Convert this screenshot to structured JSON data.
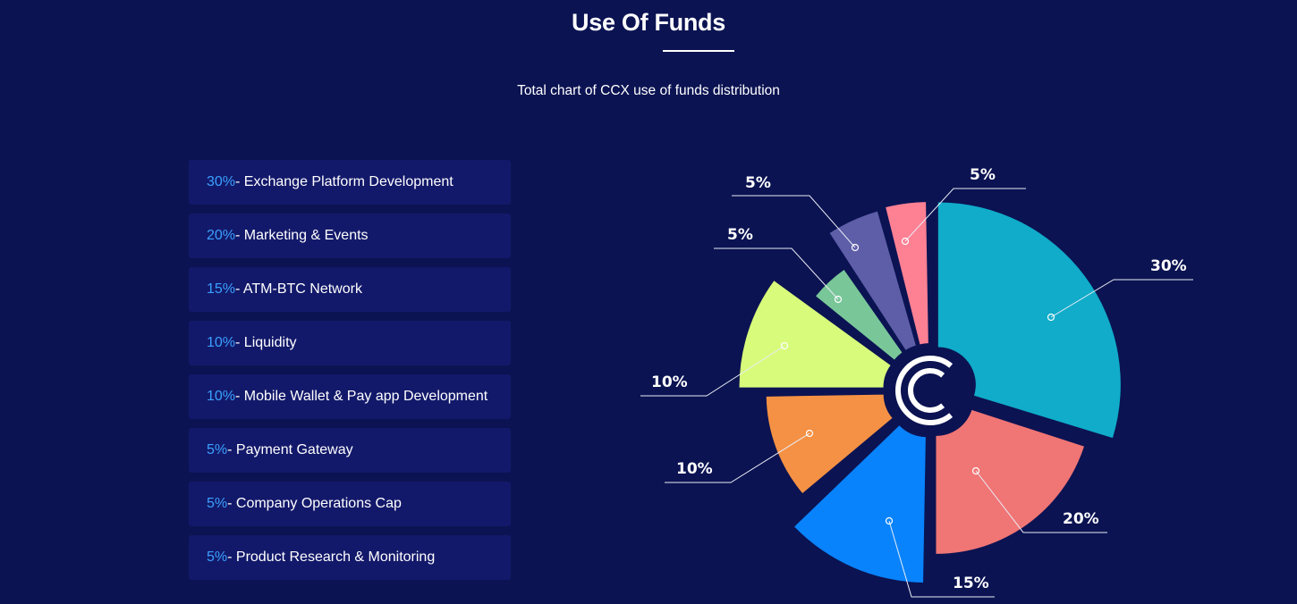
{
  "header": {
    "title": "Use Of Funds",
    "subtitle": "Total chart of CCX use of funds distribution"
  },
  "legend": [
    {
      "pct": "30%",
      "label": " - Exchange Platform Development"
    },
    {
      "pct": "20%",
      "label": " - Marketing & Events"
    },
    {
      "pct": "15%",
      "label": " - ATM-BTC Network"
    },
    {
      "pct": "10%",
      "label": " - Liquidity"
    },
    {
      "pct": "10%",
      "label": " - Mobile Wallet & Pay app Development"
    },
    {
      "pct": "5%",
      "label": " - Payment Gateway"
    },
    {
      "pct": "5%",
      "label": " - Company Operations Cap"
    },
    {
      "pct": "5%",
      "label": " - Product Research & Monitoring"
    }
  ],
  "chart_data": {
    "type": "pie",
    "style": "exploded rose (polar area) chart with center logo",
    "values": [
      30,
      20,
      15,
      10,
      10,
      5,
      5,
      5
    ],
    "labels": [
      "30%",
      "20%",
      "15%",
      "10%",
      "10%",
      "5%",
      "5%",
      "5%"
    ],
    "colors": [
      "#10acca",
      "#f07575",
      "#0883fc",
      "#f59144",
      "#d8fb7b",
      "#79c799",
      "#5e5ea8",
      "#fd8093"
    ],
    "center_logo": "ccx-logo"
  },
  "theme": {
    "background": "#0b1352",
    "legend_bg": "#13196a",
    "accent": "#3aa0ff"
  }
}
